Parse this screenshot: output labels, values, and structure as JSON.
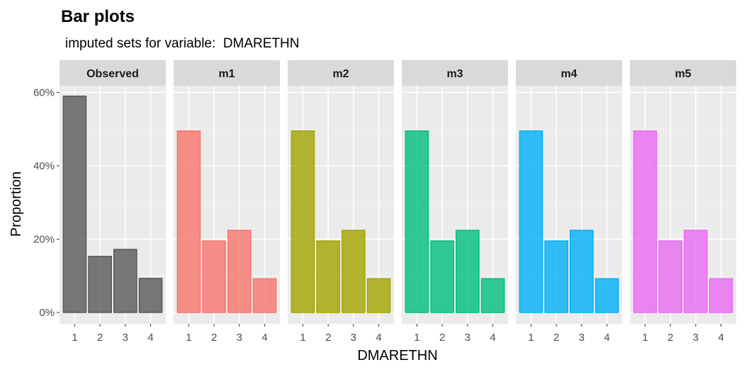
{
  "chart_data": {
    "type": "bar",
    "title": "Bar plots",
    "subtitle": "imputed sets for variable:  DMARETHN",
    "xlabel": "DMARETHN",
    "ylabel": "Proportion",
    "categories": [
      "1",
      "2",
      "3",
      "4"
    ],
    "ylim": [
      0,
      0.65
    ],
    "y_ticks": [
      0,
      0.2,
      0.4,
      0.6
    ],
    "y_tick_labels": [
      "0%",
      "20%",
      "40%",
      "60%"
    ],
    "grid": true,
    "legend": "none",
    "facets": [
      {
        "name": "Observed",
        "color": "#595959",
        "values": [
          0.59,
          0.153,
          0.172,
          0.093
        ]
      },
      {
        "name": "m1",
        "color": "#F8766D",
        "values": [
          0.495,
          0.195,
          0.224,
          0.092
        ]
      },
      {
        "name": "m2",
        "color": "#A3A500",
        "values": [
          0.495,
          0.195,
          0.224,
          0.092
        ]
      },
      {
        "name": "m3",
        "color": "#00BF7D",
        "values": [
          0.495,
          0.195,
          0.224,
          0.092
        ]
      },
      {
        "name": "m4",
        "color": "#00B0F6",
        "values": [
          0.495,
          0.195,
          0.224,
          0.092
        ]
      },
      {
        "name": "m5",
        "color": "#E76BF3",
        "values": [
          0.495,
          0.195,
          0.224,
          0.092
        ]
      }
    ]
  }
}
